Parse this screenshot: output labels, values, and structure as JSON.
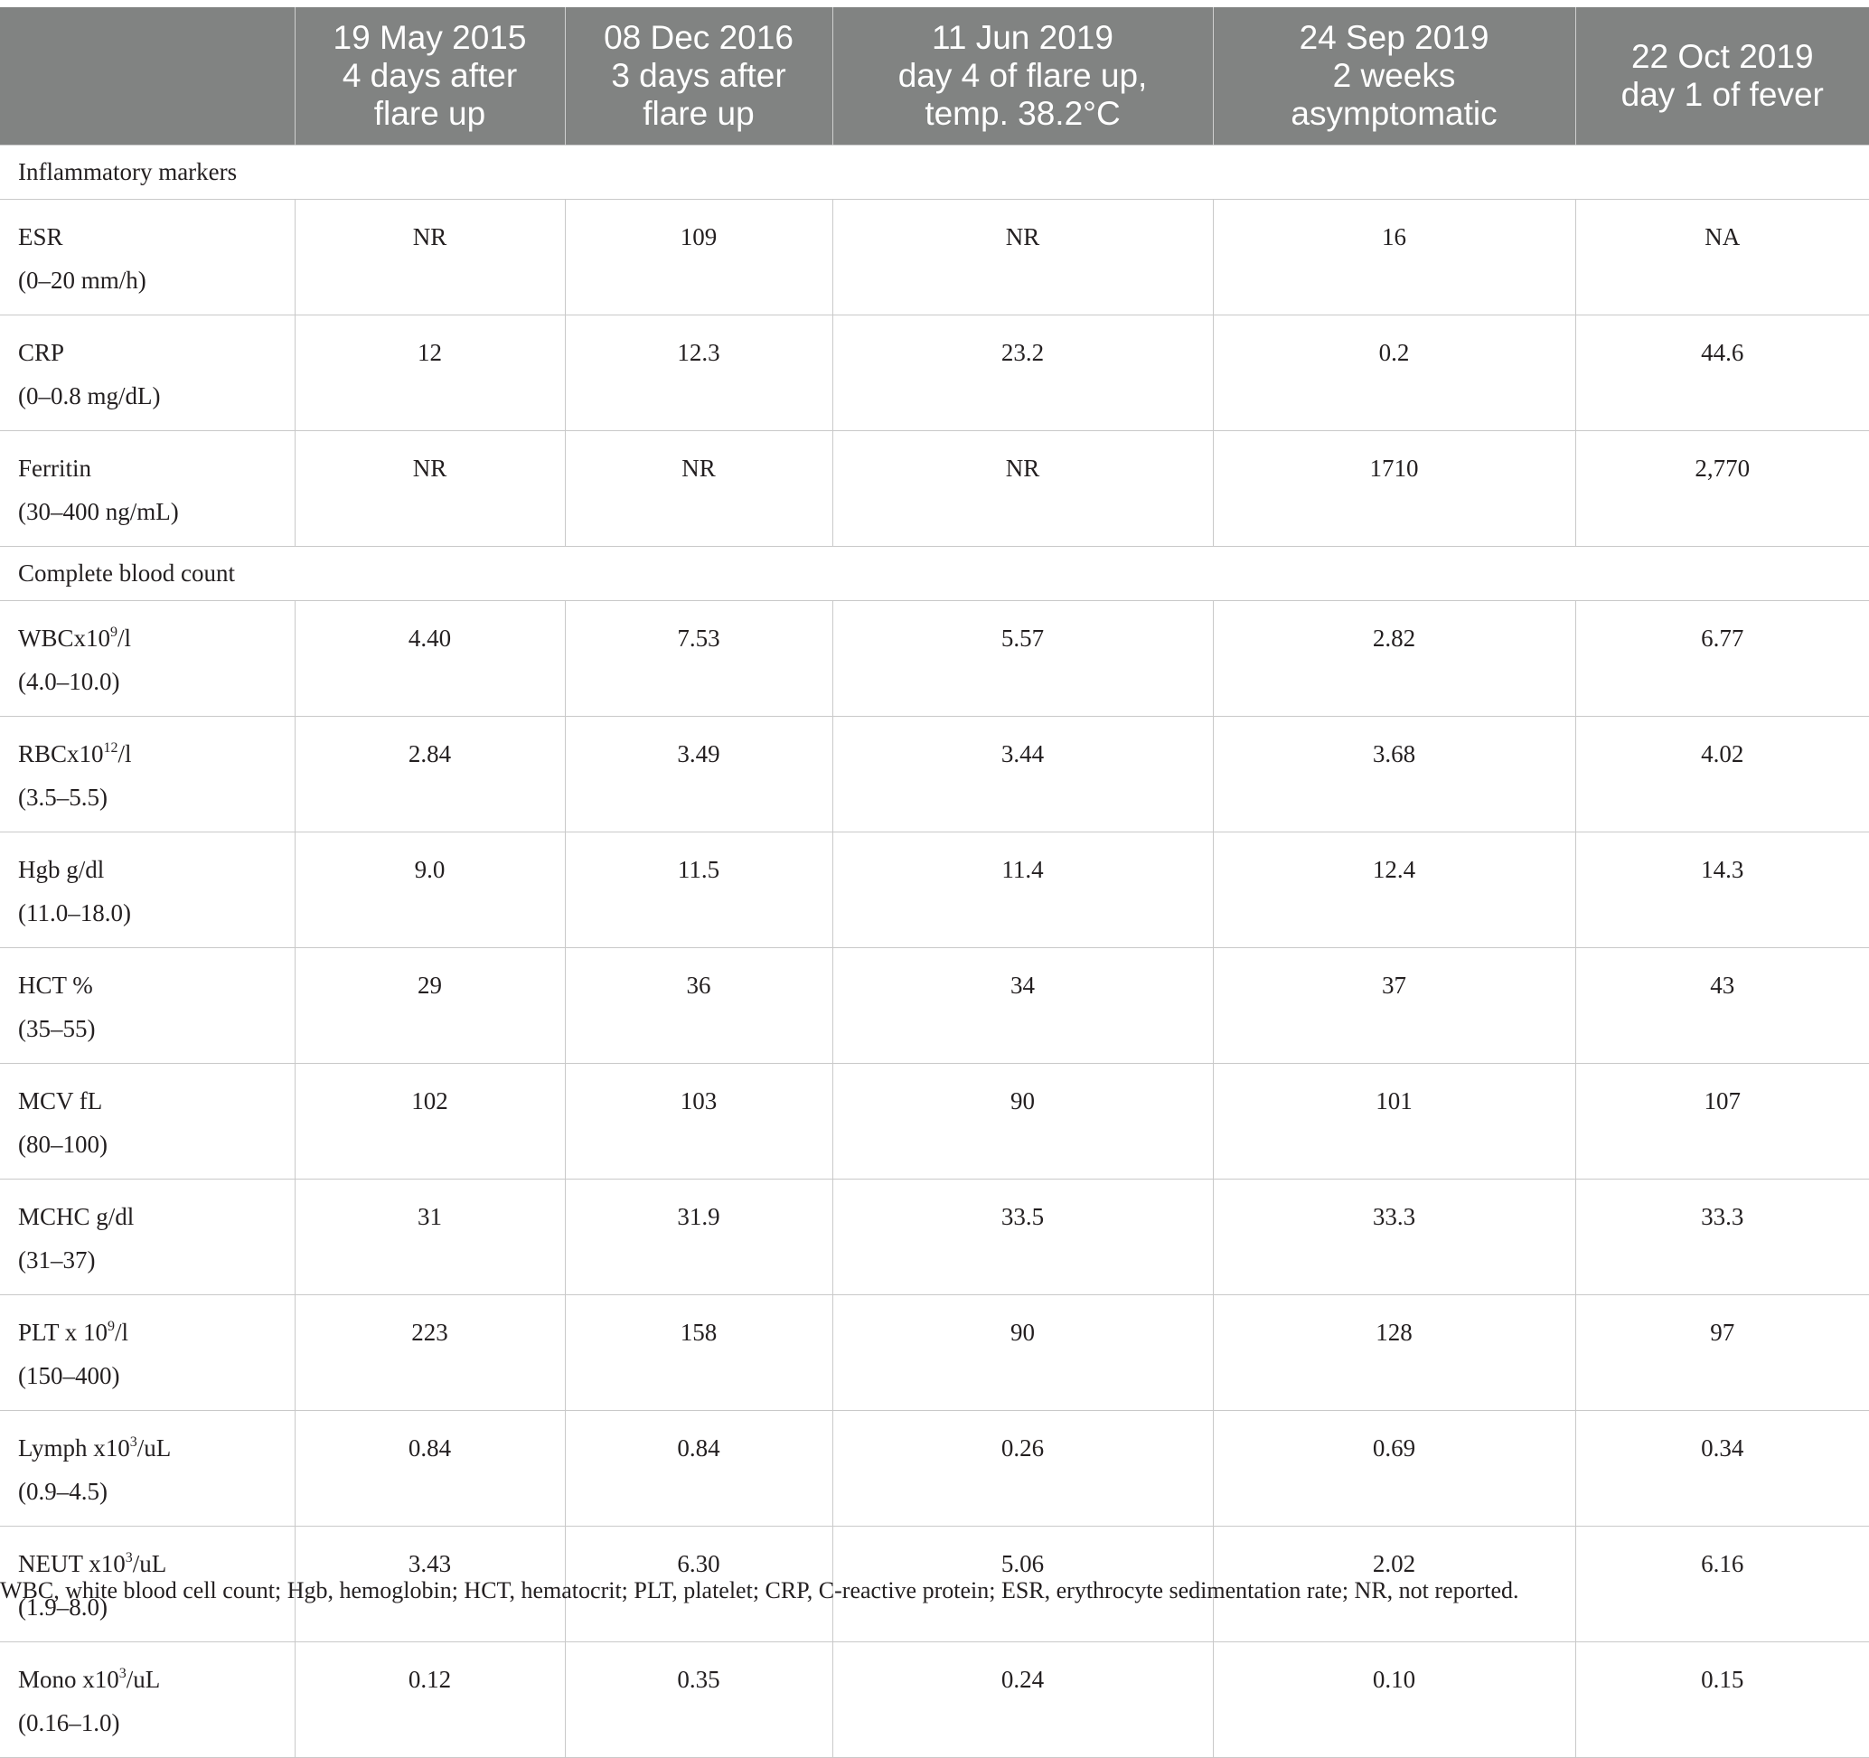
{
  "table": {
    "headers": [
      {
        "lines": []
      },
      {
        "lines": [
          "19 May 2015",
          "4 days after",
          "flare up"
        ]
      },
      {
        "lines": [
          "08 Dec 2016",
          "3 days after",
          "flare up"
        ]
      },
      {
        "lines": [
          "11 Jun 2019",
          "day 4 of flare up,",
          "temp. 38.2°C"
        ]
      },
      {
        "lines": [
          "24 Sep 2019",
          "2 weeks",
          "asymptomatic"
        ]
      },
      {
        "lines": [
          "22 Oct 2019",
          "day 1 of fever"
        ]
      }
    ],
    "sections": [
      {
        "title": "Inflammatory markers",
        "rows": [
          {
            "name": "ESR",
            "range": "(0–20 mm/h)",
            "values": [
              "NR",
              "109",
              "NR",
              "16",
              "NA"
            ]
          },
          {
            "name": "CRP",
            "range": "(0–0.8 mg/dL)",
            "values": [
              "12",
              "12.3",
              "23.2",
              "0.2",
              "44.6"
            ]
          },
          {
            "name": "Ferritin",
            "range": "(30–400 ng/mL)",
            "values": [
              "NR",
              "NR",
              "NR",
              "1710",
              "2,770"
            ]
          }
        ]
      },
      {
        "title": "Complete blood count",
        "rows": [
          {
            "name": "WBCx10",
            "sup": "9",
            "unit": "/l",
            "range": "(4.0–10.0)",
            "values": [
              "4.40",
              "7.53",
              "5.57",
              "2.82",
              "6.77"
            ]
          },
          {
            "name": "RBCx10",
            "sup": "12",
            "unit": "/l",
            "range": "(3.5–5.5)",
            "values": [
              "2.84",
              "3.49",
              "3.44",
              "3.68",
              "4.02"
            ]
          },
          {
            "name": "Hgb g/dl",
            "range": "(11.0–18.0)",
            "values": [
              "9.0",
              "11.5",
              "11.4",
              "12.4",
              "14.3"
            ]
          },
          {
            "name": "HCT %",
            "range": "(35–55)",
            "values": [
              "29",
              "36",
              "34",
              "37",
              "43"
            ]
          },
          {
            "name": "MCV fL",
            "range": "(80–100)",
            "values": [
              "102",
              "103",
              "90",
              "101",
              "107"
            ]
          },
          {
            "name": "MCHC g/dl",
            "range": "(31–37)",
            "values": [
              "31",
              "31.9",
              "33.5",
              "33.3",
              "33.3"
            ]
          },
          {
            "name": "PLT x 10",
            "sup": "9",
            "unit": "/l",
            "range": "(150–400)",
            "values": [
              "223",
              "158",
              "90",
              "128",
              "97"
            ]
          },
          {
            "name": "Lymph x10",
            "sup": "3",
            "unit": "/uL",
            "range": "(0.9–4.5)",
            "values": [
              "0.84",
              "0.84",
              "0.26",
              "0.69",
              "0.34"
            ]
          },
          {
            "name": "NEUT x10",
            "sup": "3",
            "unit": "/uL",
            "range": "(1.9–8.0)",
            "values": [
              "3.43",
              "6.30",
              "5.06",
              "2.02",
              "6.16"
            ]
          },
          {
            "name": "Mono x10",
            "sup": "3",
            "unit": "/uL",
            "range": "(0.16–1.0)",
            "values": [
              "0.12",
              "0.35",
              "0.24",
              "0.10",
              "0.15"
            ]
          }
        ]
      }
    ]
  },
  "footnote": "WBC, white blood cell count; Hgb, hemoglobin; HCT, hematocrit; PLT, platelet; CRP, C-reactive protein; ESR, erythrocyte sedimentation rate; NR, not reported.",
  "colors": {
    "header_bg": "#818382",
    "header_text": "#ffffff",
    "grid_line": "#c9c9c9",
    "body_text": "#231f20"
  }
}
